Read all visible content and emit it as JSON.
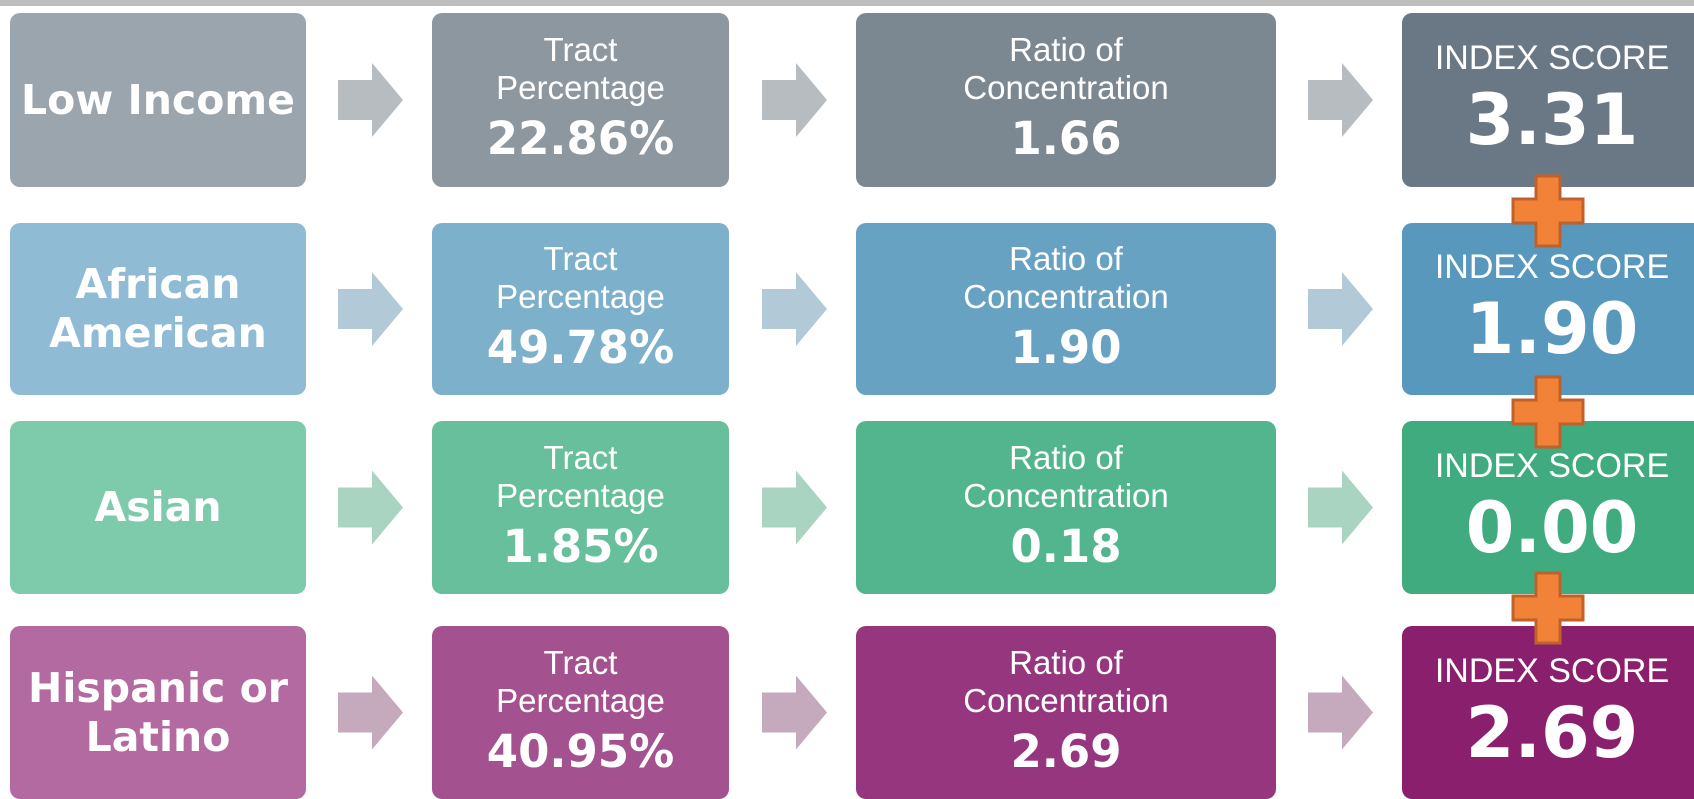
{
  "rows": [
    {
      "label": "Low Income",
      "tract": {
        "label": "Tract\nPercentage",
        "value": "22.86%"
      },
      "ratio": {
        "label": "Ratio of\nConcentration",
        "value": "1.66"
      },
      "index": {
        "label": "INDEX SCORE",
        "value": "3.31"
      }
    },
    {
      "label": "African\nAmerican",
      "tract": {
        "label": "Tract\nPercentage",
        "value": "49.78%"
      },
      "ratio": {
        "label": "Ratio of\nConcentration",
        "value": "1.90"
      },
      "index": {
        "label": "INDEX SCORE",
        "value": "1.90"
      }
    },
    {
      "label": "Asian",
      "tract": {
        "label": "Tract\nPercentage",
        "value": "1.85%"
      },
      "ratio": {
        "label": "Ratio of\nConcentration",
        "value": "0.18"
      },
      "index": {
        "label": "INDEX SCORE",
        "value": "0.00"
      }
    },
    {
      "label": "Hispanic or\nLatino",
      "tract": {
        "label": "Tract\nPercentage",
        "value": "40.95%"
      },
      "ratio": {
        "label": "Ratio of\nConcentration",
        "value": "2.69"
      },
      "index": {
        "label": "INDEX SCORE",
        "value": "2.69"
      }
    }
  ]
}
